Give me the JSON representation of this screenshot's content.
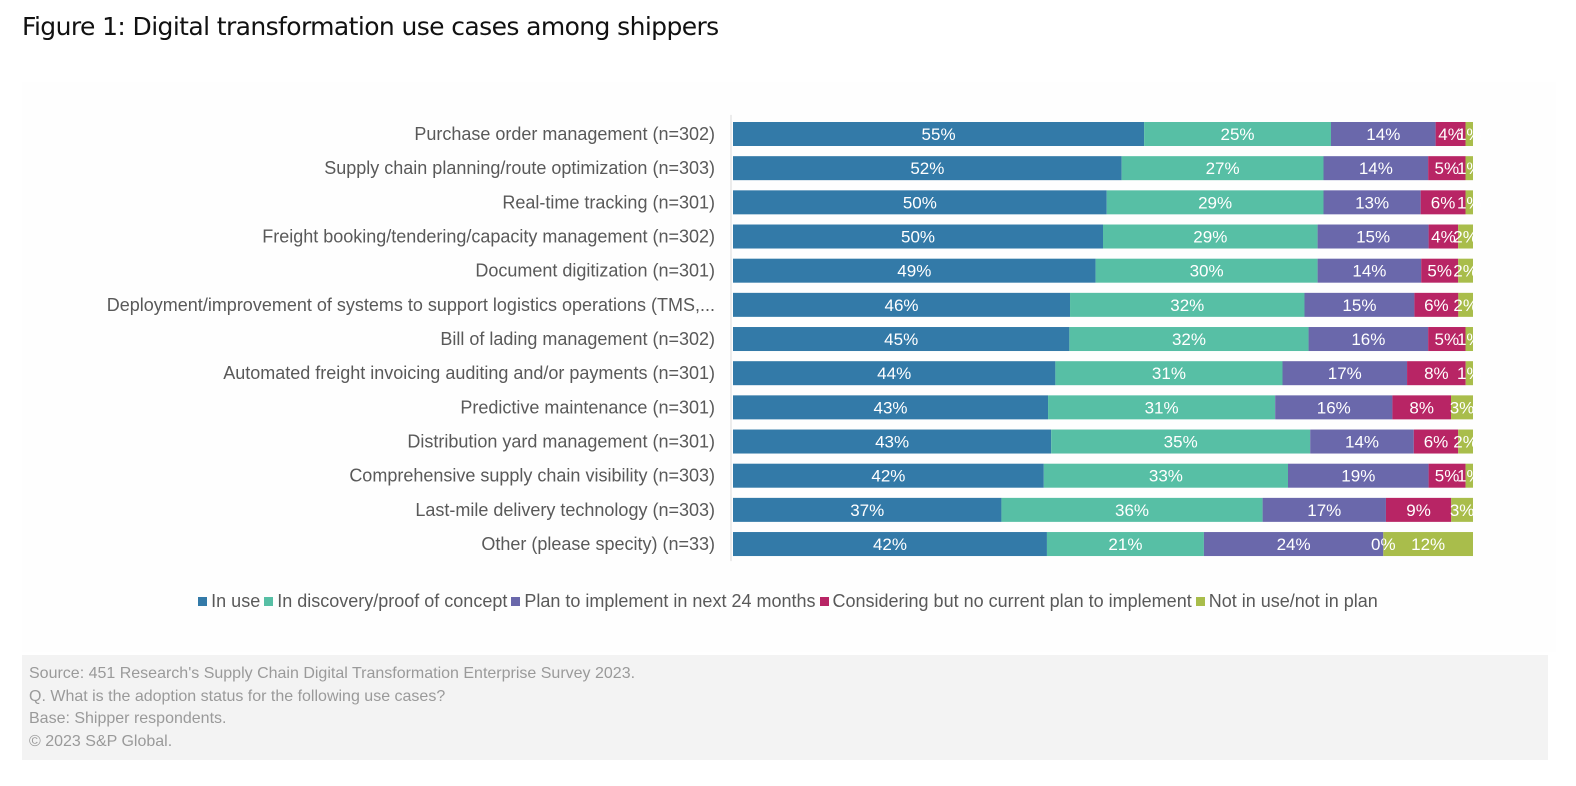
{
  "title": "Figure 1: Digital transformation use cases among shippers",
  "chart_data": {
    "type": "bar",
    "orientation": "horizontal",
    "stacked": true,
    "title": "Figure 1: Digital transformation use cases among shippers",
    "xlabel": "",
    "ylabel": "",
    "xlim": [
      0,
      100
    ],
    "grid": false,
    "legend_position": "bottom",
    "categories": [
      "Purchase order management (n=302)",
      "Supply chain planning/route optimization (n=303)",
      "Real-time tracking (n=301)",
      "Freight booking/tendering/capacity management (n=302)",
      "Document digitization (n=301)",
      "Deployment/improvement of systems to support logistics operations (TMS,...",
      "Bill of lading management (n=302)",
      "Automated freight invoicing auditing and/or payments (n=301)",
      "Predictive maintenance (n=301)",
      "Distribution yard management (n=301)",
      "Comprehensive supply chain visibility (n=303)",
      "Last-mile delivery technology (n=303)",
      "Other (please specity) (n=33)"
    ],
    "series": [
      {
        "name": "In use",
        "color": "#337aa8",
        "values": [
          55,
          52,
          50,
          50,
          49,
          46,
          45,
          44,
          43,
          43,
          42,
          37,
          42
        ]
      },
      {
        "name": "In discovery/proof of concept",
        "color": "#57bfa5",
        "values": [
          25,
          27,
          29,
          29,
          30,
          32,
          32,
          31,
          31,
          35,
          33,
          36,
          21
        ]
      },
      {
        "name": "Plan to implement in next 24 months",
        "color": "#6a68ab",
        "values": [
          14,
          14,
          13,
          15,
          14,
          15,
          16,
          17,
          16,
          14,
          19,
          17,
          24
        ]
      },
      {
        "name": "Considering but no current plan to implement",
        "color": "#b82565",
        "values": [
          4,
          5,
          6,
          4,
          5,
          6,
          5,
          8,
          8,
          6,
          5,
          9,
          0
        ]
      },
      {
        "name": "Not in use/not in plan",
        "color": "#a9bd4b",
        "values": [
          1,
          1,
          1,
          2,
          2,
          2,
          1,
          1,
          3,
          2,
          1,
          3,
          12
        ]
      }
    ],
    "value_suffix": "%"
  },
  "footer": {
    "source": "Source: 451 Research's Supply Chain Digital Transformation Enterprise Survey 2023.",
    "question": "Q. What is the adoption status for the following use cases?",
    "base": "Base: Shipper respondents.",
    "copyright": "© 2023 S&P Global."
  }
}
